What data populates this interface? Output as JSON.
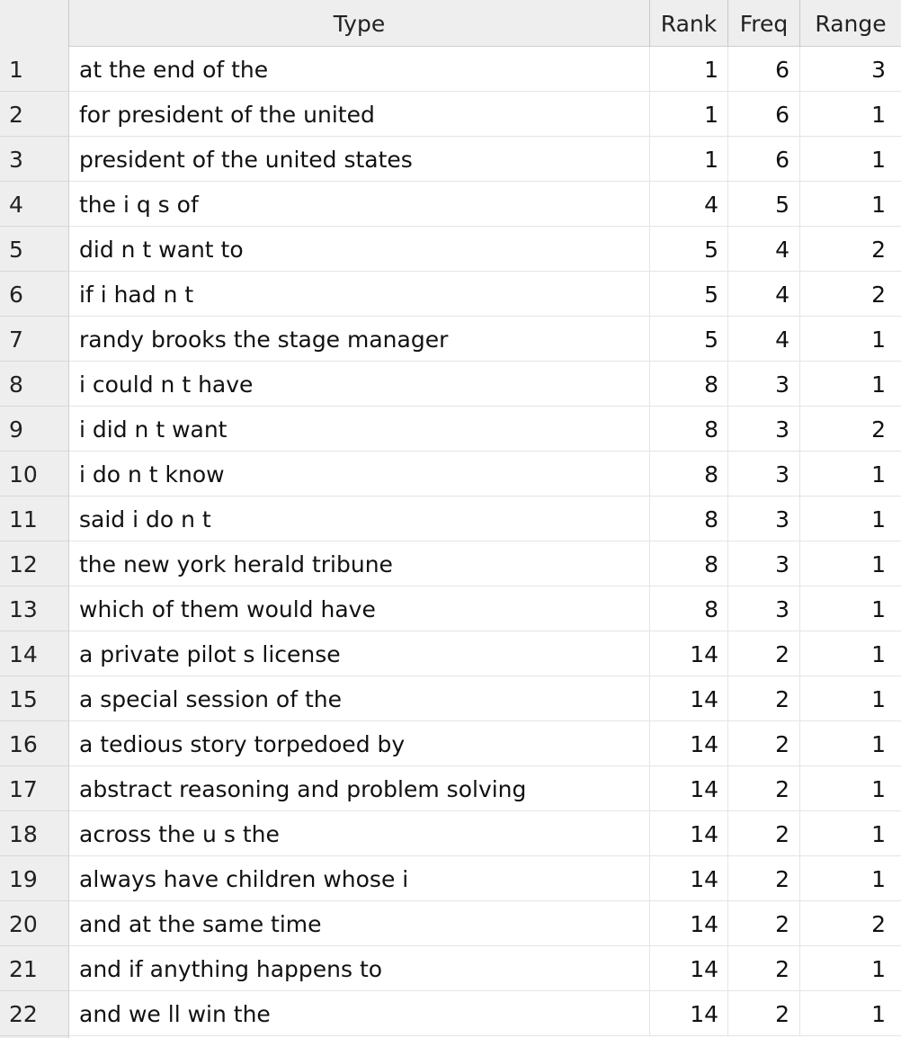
{
  "table": {
    "columns": {
      "index": "",
      "type": "Type",
      "rank": "Rank",
      "freq": "Freq",
      "range": "Range"
    },
    "rows": [
      {
        "index": "1",
        "type": "at the end of the",
        "rank": "1",
        "freq": "6",
        "range": "3"
      },
      {
        "index": "2",
        "type": "for president of the united",
        "rank": "1",
        "freq": "6",
        "range": "1"
      },
      {
        "index": "3",
        "type": "president of the united states",
        "rank": "1",
        "freq": "6",
        "range": "1"
      },
      {
        "index": "4",
        "type": "the i q s of",
        "rank": "4",
        "freq": "5",
        "range": "1"
      },
      {
        "index": "5",
        "type": "did n t want to",
        "rank": "5",
        "freq": "4",
        "range": "2"
      },
      {
        "index": "6",
        "type": "if i had n t",
        "rank": "5",
        "freq": "4",
        "range": "2"
      },
      {
        "index": "7",
        "type": "randy brooks the stage manager",
        "rank": "5",
        "freq": "4",
        "range": "1"
      },
      {
        "index": "8",
        "type": "i could n t have",
        "rank": "8",
        "freq": "3",
        "range": "1"
      },
      {
        "index": "9",
        "type": "i did n t want",
        "rank": "8",
        "freq": "3",
        "range": "2"
      },
      {
        "index": "10",
        "type": "i do n t know",
        "rank": "8",
        "freq": "3",
        "range": "1"
      },
      {
        "index": "11",
        "type": "said i do n t",
        "rank": "8",
        "freq": "3",
        "range": "1"
      },
      {
        "index": "12",
        "type": "the new york herald tribune",
        "rank": "8",
        "freq": "3",
        "range": "1"
      },
      {
        "index": "13",
        "type": "which of them would have",
        "rank": "8",
        "freq": "3",
        "range": "1"
      },
      {
        "index": "14",
        "type": "a private pilot s license",
        "rank": "14",
        "freq": "2",
        "range": "1"
      },
      {
        "index": "15",
        "type": "a special session of the",
        "rank": "14",
        "freq": "2",
        "range": "1"
      },
      {
        "index": "16",
        "type": "a tedious story torpedoed by",
        "rank": "14",
        "freq": "2",
        "range": "1"
      },
      {
        "index": "17",
        "type": "abstract reasoning and problem solving",
        "rank": "14",
        "freq": "2",
        "range": "1"
      },
      {
        "index": "18",
        "type": "across the u s the",
        "rank": "14",
        "freq": "2",
        "range": "1"
      },
      {
        "index": "19",
        "type": "always have children whose i",
        "rank": "14",
        "freq": "2",
        "range": "1"
      },
      {
        "index": "20",
        "type": "and at the same time",
        "rank": "14",
        "freq": "2",
        "range": "2"
      },
      {
        "index": "21",
        "type": "and if anything happens to",
        "rank": "14",
        "freq": "2",
        "range": "1"
      },
      {
        "index": "22",
        "type": "and we ll win the",
        "rank": "14",
        "freq": "2",
        "range": "1"
      }
    ]
  }
}
